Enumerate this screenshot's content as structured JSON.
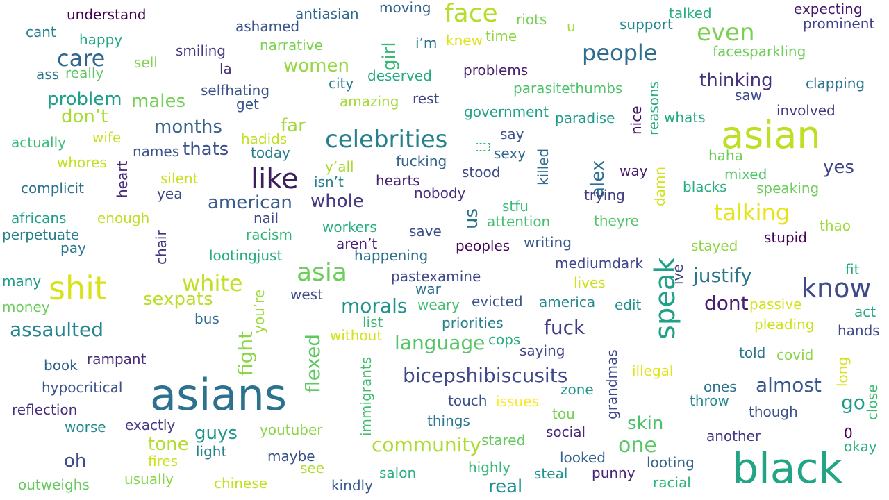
{
  "words": [
    {
      "text": "asians",
      "color": "#2c728e"
    },
    {
      "text": "black",
      "color": "#21a585"
    },
    {
      "text": "asian",
      "color": "#bddf26"
    },
    {
      "text": "shit",
      "color": "#d8e219"
    },
    {
      "text": "like",
      "color": "#3b1f5b"
    },
    {
      "text": "speak",
      "color": "#1fa187"
    },
    {
      "text": "know",
      "color": "#3e4a89"
    },
    {
      "text": "face",
      "color": "#b5de2b"
    },
    {
      "text": "asia",
      "color": "#6ccd5a"
    },
    {
      "text": "celebrities",
      "color": "#26818e"
    },
    {
      "text": "talking",
      "color": "#e5e419"
    },
    {
      "text": "people",
      "color": "#2f6c8e"
    },
    {
      "text": "care",
      "color": "#31668e"
    },
    {
      "text": "even",
      "color": "#7ad151"
    },
    {
      "text": "white",
      "color": "#c2df23"
    },
    {
      "text": "bicepshibiscusits",
      "color": "#3f4889"
    },
    {
      "text": "justify",
      "color": "#2a768e"
    },
    {
      "text": "assaulted",
      "color": "#25858e"
    },
    {
      "text": "morals",
      "color": "#20928c"
    },
    {
      "text": "fuck",
      "color": "#433e85"
    },
    {
      "text": "language",
      "color": "#56c667"
    },
    {
      "text": "community",
      "color": "#addc30"
    },
    {
      "text": "one",
      "color": "#58c765"
    },
    {
      "text": "almost",
      "color": "#38598c"
    },
    {
      "text": "dont",
      "color": "#481f70"
    },
    {
      "text": "go",
      "color": "#1e9b8a"
    },
    {
      "text": "fight",
      "color": "#8bd646"
    },
    {
      "text": "flexed",
      "color": "#5ec962"
    },
    {
      "text": "problem",
      "color": "#1f9e89"
    },
    {
      "text": "thinking",
      "color": "#46327e"
    },
    {
      "text": "american",
      "color": "#375b8d"
    },
    {
      "text": "whole",
      "color": "#443983"
    },
    {
      "text": "months",
      "color": "#355f8d"
    },
    {
      "text": "thats",
      "color": "#3c508b"
    },
    {
      "text": "males",
      "color": "#73d056"
    },
    {
      "text": "women",
      "color": "#95d840"
    },
    {
      "text": "girl",
      "color": "#38b977"
    },
    {
      "text": "don’t",
      "color": "#a8db34"
    },
    {
      "text": "far",
      "color": "#a0da39"
    },
    {
      "text": "sexpats",
      "color": "#bade28"
    },
    {
      "text": "skin",
      "color": "#4ac16d"
    },
    {
      "text": "guys",
      "color": "#1f988b"
    },
    {
      "text": "tone",
      "color": "#b0dd2f"
    },
    {
      "text": "real",
      "color": "#228d8d"
    },
    {
      "text": "oh",
      "color": "#3e4989"
    },
    {
      "text": "us",
      "color": "#2d708e"
    },
    {
      "text": "yes",
      "color": "#404588"
    },
    {
      "text": "alex",
      "color": "#2c718e"
    },
    {
      "text": "face",
      "color": "#b5de2b"
    },
    {
      "text": "understand",
      "color": "#440154"
    },
    {
      "text": "antiasian",
      "color": "#31688e"
    },
    {
      "text": "moving",
      "color": "#33628d"
    },
    {
      "text": "riots",
      "color": "#75d054"
    },
    {
      "text": "u",
      "color": "#a5db36"
    },
    {
      "text": "support",
      "color": "#24868e"
    },
    {
      "text": "talked",
      "color": "#29af7f"
    },
    {
      "text": "expecting",
      "color": "#481a6c"
    },
    {
      "text": "prominent",
      "color": "#414487"
    },
    {
      "text": "cant",
      "color": "#26828e"
    },
    {
      "text": "ashamed",
      "color": "#3b528b"
    },
    {
      "text": "happy",
      "color": "#22a884"
    },
    {
      "text": "narrative",
      "color": "#7ad151"
    },
    {
      "text": "i’m",
      "color": "#2a788e"
    },
    {
      "text": "knew",
      "color": "#dde318"
    },
    {
      "text": "time",
      "color": "#90d743"
    },
    {
      "text": "facesparkling",
      "color": "#6ece58"
    },
    {
      "text": "ass",
      "color": "#2a778e"
    },
    {
      "text": "really",
      "color": "#5cc863"
    },
    {
      "text": "sell",
      "color": "#7fd34e"
    },
    {
      "text": "smiling",
      "color": "#453882"
    },
    {
      "text": "la",
      "color": "#472d7b"
    },
    {
      "text": "deserved",
      "color": "#25ab82"
    },
    {
      "text": "problems",
      "color": "#482173"
    },
    {
      "text": "city",
      "color": "#287c8e"
    },
    {
      "text": "selfhating",
      "color": "#3b528b"
    },
    {
      "text": "get",
      "color": "#3a548c"
    },
    {
      "text": "amazing",
      "color": "#a2da37"
    },
    {
      "text": "rest",
      "color": "#3f4788"
    },
    {
      "text": "parasitethumbs",
      "color": "#4ec36b"
    },
    {
      "text": "saw",
      "color": "#3e4a89"
    },
    {
      "text": "clapping",
      "color": "#2c738e"
    },
    {
      "text": "nice",
      "color": "#471063"
    },
    {
      "text": "reasons",
      "color": "#27ad81"
    },
    {
      "text": "government",
      "color": "#20a386"
    },
    {
      "text": "paradise",
      "color": "#1f9a8a"
    },
    {
      "text": "whats",
      "color": "#24aa83"
    },
    {
      "text": "involved",
      "color": "#443a83"
    },
    {
      "text": "actually",
      "color": "#3bbb75"
    },
    {
      "text": "wife",
      "color": "#c8e020"
    },
    {
      "text": "hadids",
      "color": "#c0df25"
    },
    {
      "text": "say",
      "color": "#3b528b"
    },
    {
      "text": "sexy",
      "color": "#31688e"
    },
    {
      "text": "killed",
      "color": "#2f6c8e"
    },
    {
      "text": "names",
      "color": "#3a548c"
    },
    {
      "text": "today",
      "color": "#287c8e"
    },
    {
      "text": "whores",
      "color": "#c5e021"
    },
    {
      "text": "heart",
      "color": "#472a7a"
    },
    {
      "text": "y’all",
      "color": "#a8db34"
    },
    {
      "text": "fucking",
      "color": "#33638d"
    },
    {
      "text": "stood",
      "color": "#3e4a89"
    },
    {
      "text": "way",
      "color": "#481b6d"
    },
    {
      "text": "damn",
      "color": "#d2e21b"
    },
    {
      "text": "haha",
      "color": "#6ece58"
    },
    {
      "text": "mixed",
      "color": "#52c569"
    },
    {
      "text": "complicit",
      "color": "#2d718e"
    },
    {
      "text": "silent",
      "color": "#cae11f"
    },
    {
      "text": "isn’t",
      "color": "#287d8e"
    },
    {
      "text": "hearts",
      "color": "#482475"
    },
    {
      "text": "nobody",
      "color": "#472f7d"
    },
    {
      "text": "trying",
      "color": "#433d84"
    },
    {
      "text": "blacks",
      "color": "#29af7f"
    },
    {
      "text": "speaking",
      "color": "#6ccd5a"
    },
    {
      "text": "yea",
      "color": "#3e4989"
    },
    {
      "text": "africans",
      "color": "#1fa088"
    },
    {
      "text": "enough",
      "color": "#bddf26"
    },
    {
      "text": "nail",
      "color": "#3f4889"
    },
    {
      "text": "stfu",
      "color": "#3bbb75"
    },
    {
      "text": "attention",
      "color": "#42be71"
    },
    {
      "text": "theyre",
      "color": "#54c568"
    },
    {
      "text": "thao",
      "color": "#9fda3a"
    },
    {
      "text": "perpetuate",
      "color": "#277f8e"
    },
    {
      "text": "chair",
      "color": "#46337f"
    },
    {
      "text": "racism",
      "color": "#35b779"
    },
    {
      "text": "workers",
      "color": "#2ab07f"
    },
    {
      "text": "save",
      "color": "#3c4f8a"
    },
    {
      "text": "stupid",
      "color": "#450559"
    },
    {
      "text": "pay",
      "color": "#2a788e"
    },
    {
      "text": "lootingjust",
      "color": "#27ad81"
    },
    {
      "text": "aren’t",
      "color": "#482576"
    },
    {
      "text": "happening",
      "color": "#2d718e"
    },
    {
      "text": "peoples",
      "color": "#46085c"
    },
    {
      "text": "writing",
      "color": "#38598c"
    },
    {
      "text": "stayed",
      "color": "#8ed645"
    },
    {
      "text": "ive",
      "color": "#414487"
    },
    {
      "text": "mediumdark",
      "color": "#3f4889"
    },
    {
      "text": "fit",
      "color": "#23a983"
    },
    {
      "text": "many",
      "color": "#1e9c89"
    },
    {
      "text": "you’re",
      "color": "#9dd93b"
    },
    {
      "text": "pastexamine",
      "color": "#3f4889"
    },
    {
      "text": "lives",
      "color": "#d0e11c"
    },
    {
      "text": "west",
      "color": "#3d4d8a"
    },
    {
      "text": "war",
      "color": "#2c738e"
    },
    {
      "text": "money",
      "color": "#6ccd5a"
    },
    {
      "text": "weary",
      "color": "#44bf70"
    },
    {
      "text": "evicted",
      "color": "#3a548c"
    },
    {
      "text": "america",
      "color": "#238a8d"
    },
    {
      "text": "edit",
      "color": "#21918c"
    },
    {
      "text": "passive",
      "color": "#d2e21b"
    },
    {
      "text": "act",
      "color": "#23a983"
    },
    {
      "text": "bus",
      "color": "#2f6c8e"
    },
    {
      "text": "list",
      "color": "#3aba76"
    },
    {
      "text": "priorities",
      "color": "#27808e"
    },
    {
      "text": "pleading",
      "color": "#cde11d"
    },
    {
      "text": "hands",
      "color": "#3e4a89"
    },
    {
      "text": "without",
      "color": "#d2e21b"
    },
    {
      "text": "cops",
      "color": "#29af7f"
    },
    {
      "text": "saying",
      "color": "#404588"
    },
    {
      "text": "told",
      "color": "#2b758e"
    },
    {
      "text": "covid",
      "color": "#8bd646"
    },
    {
      "text": "book",
      "color": "#33638d"
    },
    {
      "text": "rampant",
      "color": "#472c7a"
    },
    {
      "text": "immigrants",
      "color": "#42be71"
    },
    {
      "text": "grandmas",
      "color": "#3e4989"
    },
    {
      "text": "illegal",
      "color": "#e2e418"
    },
    {
      "text": "long",
      "color": "#d8e219"
    },
    {
      "text": "hypocritical",
      "color": "#3b528b"
    },
    {
      "text": "zone",
      "color": "#1f968b"
    },
    {
      "text": "ones",
      "color": "#2c738e"
    },
    {
      "text": "close",
      "color": "#3dbc74"
    },
    {
      "text": "reflection",
      "color": "#472d7b"
    },
    {
      "text": "touch",
      "color": "#3c4f8a"
    },
    {
      "text": "issues",
      "color": "#fde725"
    },
    {
      "text": "throw",
      "color": "#238a8d"
    },
    {
      "text": "though",
      "color": "#3b528b"
    },
    {
      "text": "worse",
      "color": "#23898e"
    },
    {
      "text": "exactly",
      "color": "#453781"
    },
    {
      "text": "things",
      "color": "#2a788e"
    },
    {
      "text": "tou",
      "color": "#75d054"
    },
    {
      "text": "youtuber",
      "color": "#8bd646"
    },
    {
      "text": "social",
      "color": "#482878"
    },
    {
      "text": "another",
      "color": "#443983"
    },
    {
      "text": "0",
      "color": "#440154"
    },
    {
      "text": "stared",
      "color": "#65cb5e"
    },
    {
      "text": "okay",
      "color": "#2db27d"
    },
    {
      "text": "light",
      "color": "#25858e"
    },
    {
      "text": "maybe",
      "color": "#3b528b"
    },
    {
      "text": "fires",
      "color": "#cde11d"
    },
    {
      "text": "looked",
      "color": "#33638d"
    },
    {
      "text": "looting",
      "color": "#33628d"
    },
    {
      "text": "see",
      "color": "#b0dd2f"
    },
    {
      "text": "highly",
      "color": "#35b779"
    },
    {
      "text": "punny",
      "color": "#482576"
    },
    {
      "text": "steal",
      "color": "#20928c"
    },
    {
      "text": "usually",
      "color": "#86d549"
    },
    {
      "text": "salon",
      "color": "#2ab07f"
    },
    {
      "text": "racial",
      "color": "#2fb47c"
    },
    {
      "text": "outweighs",
      "color": "#65cb5e"
    },
    {
      "text": "chinese",
      "color": "#c2df23"
    },
    {
      "text": "kindly",
      "color": "#38598c"
    }
  ]
}
